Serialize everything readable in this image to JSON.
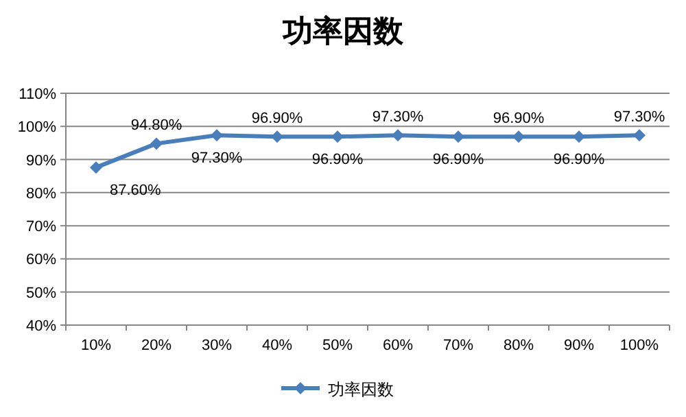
{
  "chart_data": {
    "type": "line",
    "title": "功率因数",
    "categories": [
      "10%",
      "20%",
      "30%",
      "40%",
      "50%",
      "60%",
      "70%",
      "80%",
      "90%",
      "100%"
    ],
    "series": [
      {
        "name": "功率因数",
        "color": "#4a7ebb",
        "values": [
          87.6,
          94.8,
          97.3,
          96.9,
          96.9,
          97.3,
          96.9,
          96.9,
          96.9,
          97.3
        ],
        "value_labels": [
          "87.60%",
          "94.80%",
          "97.30%",
          "96.90%",
          "96.90%",
          "97.30%",
          "96.90%",
          "96.90%",
          "96.90%",
          "97.30%"
        ]
      }
    ],
    "ylim": [
      40,
      110
    ],
    "yticks": [
      {
        "value": 40,
        "label": "40%"
      },
      {
        "value": 50,
        "label": "50%"
      },
      {
        "value": 60,
        "label": "60%"
      },
      {
        "value": 70,
        "label": "70%"
      },
      {
        "value": 80,
        "label": "80%"
      },
      {
        "value": 90,
        "label": "90%"
      },
      {
        "value": 100,
        "label": "100%"
      },
      {
        "value": 110,
        "label": "110%"
      }
    ],
    "grid": "y",
    "legend": "bottom",
    "marker": "diamond",
    "line_style": "solid"
  }
}
